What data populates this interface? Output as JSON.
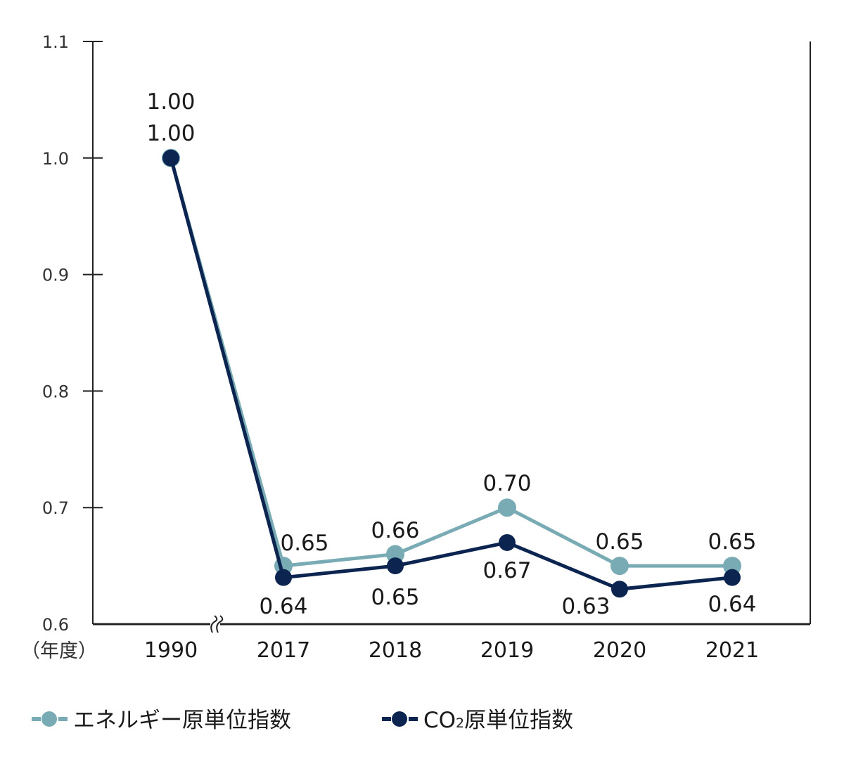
{
  "chart_data": {
    "type": "line",
    "x_unit_label": "（年度）",
    "categories": [
      "1990",
      "2017",
      "2018",
      "2019",
      "2020",
      "2021"
    ],
    "y_ticks": [
      "0.6",
      "0.7",
      "0.8",
      "0.9",
      "1.0",
      "1.1"
    ],
    "ylim": [
      0.6,
      1.1
    ],
    "axis_break_after": "1990",
    "series": [
      {
        "key": "energy",
        "name": "エネルギー原単位指数",
        "color": "#79abb5",
        "values": [
          1.0,
          0.65,
          0.66,
          0.7,
          0.65,
          0.65
        ],
        "labels": [
          "1.00",
          "0.65",
          "0.66",
          "0.70",
          "0.65",
          "0.65"
        ]
      },
      {
        "key": "co2",
        "name_parts": [
          "CO",
          "2",
          "原単位指数"
        ],
        "color": "#0b2550",
        "values": [
          1.0,
          0.64,
          0.65,
          0.67,
          0.63,
          0.64
        ],
        "labels": [
          "1.00",
          "0.64",
          "0.65",
          "0.67",
          "0.63",
          "0.64"
        ]
      }
    ],
    "grid": false,
    "legend_position": "bottom-left"
  }
}
